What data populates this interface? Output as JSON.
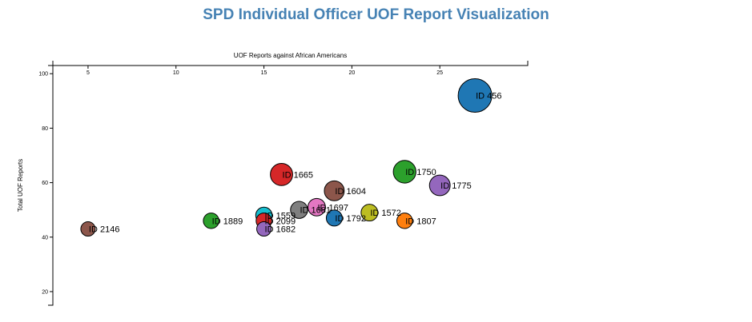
{
  "title": "SPD Individual Officer UOF Report Visualization",
  "chart_data": {
    "type": "scatter",
    "xlabel": "UOF Reports against African Americans",
    "ylabel": "Total UOF Reports",
    "xlim": [
      3,
      30
    ],
    "ylim": [
      15,
      103
    ],
    "x_ticks": [
      5,
      10,
      15,
      20,
      25
    ],
    "y_ticks": [
      20,
      40,
      60,
      80,
      100
    ],
    "x_axis_position": "top",
    "grid": false,
    "points": [
      {
        "label": "ID 456",
        "x": 27,
        "y": 92,
        "color": "#1f77b4"
      },
      {
        "label": "ID 1750",
        "x": 23,
        "y": 64,
        "color": "#2ca02c"
      },
      {
        "label": "ID 1775",
        "x": 25,
        "y": 59,
        "color": "#9467bd"
      },
      {
        "label": "ID 1665",
        "x": 16,
        "y": 63,
        "color": "#d62728"
      },
      {
        "label": "ID 1604",
        "x": 19,
        "y": 57,
        "color": "#8c564b"
      },
      {
        "label": "ID 1697",
        "x": 18,
        "y": 51,
        "color": "#e377c2"
      },
      {
        "label": "ID 1681",
        "x": 17,
        "y": 50,
        "color": "#7f7f7f"
      },
      {
        "label": "ID 1572",
        "x": 21,
        "y": 49,
        "color": "#bcbd22"
      },
      {
        "label": "ID 1559",
        "x": 15,
        "y": 48,
        "color": "#17becf"
      },
      {
        "label": "ID 1792",
        "x": 19,
        "y": 47,
        "color": "#1f77b4"
      },
      {
        "label": "ID 2099",
        "x": 15,
        "y": 46,
        "color": "#d62728"
      },
      {
        "label": "ID 1807",
        "x": 23,
        "y": 46,
        "color": "#ff7f0e"
      },
      {
        "label": "ID 1889",
        "x": 12,
        "y": 46,
        "color": "#2ca02c"
      },
      {
        "label": "ID 1682",
        "x": 15,
        "y": 43,
        "color": "#9467bd"
      },
      {
        "label": "ID 2146",
        "x": 5,
        "y": 43,
        "color": "#8c564b"
      }
    ]
  }
}
